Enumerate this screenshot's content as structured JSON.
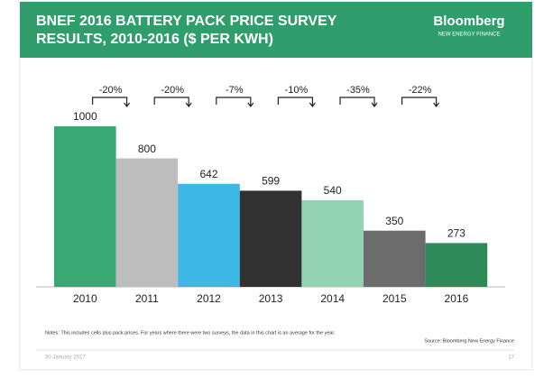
{
  "chart_data": {
    "type": "bar",
    "title_line1": "BNEF 2016 BATTERY PACK PRICE SURVEY",
    "title_line2": "RESULTS, 2010-2016 ($ PER KWH)",
    "brand": "Bloomberg",
    "brand_sub": "NEW ENERGY FINANCE",
    "categories": [
      "2010",
      "2011",
      "2012",
      "2013",
      "2014",
      "2015",
      "2016"
    ],
    "values": [
      1000,
      800,
      642,
      599,
      540,
      350,
      273
    ],
    "colors": [
      "#3aa874",
      "#bebdbe",
      "#3db7e4",
      "#323232",
      "#93d2b3",
      "#6c6c6c",
      "#2e8a58"
    ],
    "change_labels": [
      "-20%",
      "-20%",
      "-7%",
      "-10%",
      "-35%",
      "-22%"
    ],
    "notes": "Notes: This includes cells plus pack prices. For years where there were two surveys, the data in this chart is an average for the year.",
    "source": "Source: Bloomberg New Energy Finance",
    "date": "30 January 2017",
    "page": "17"
  }
}
